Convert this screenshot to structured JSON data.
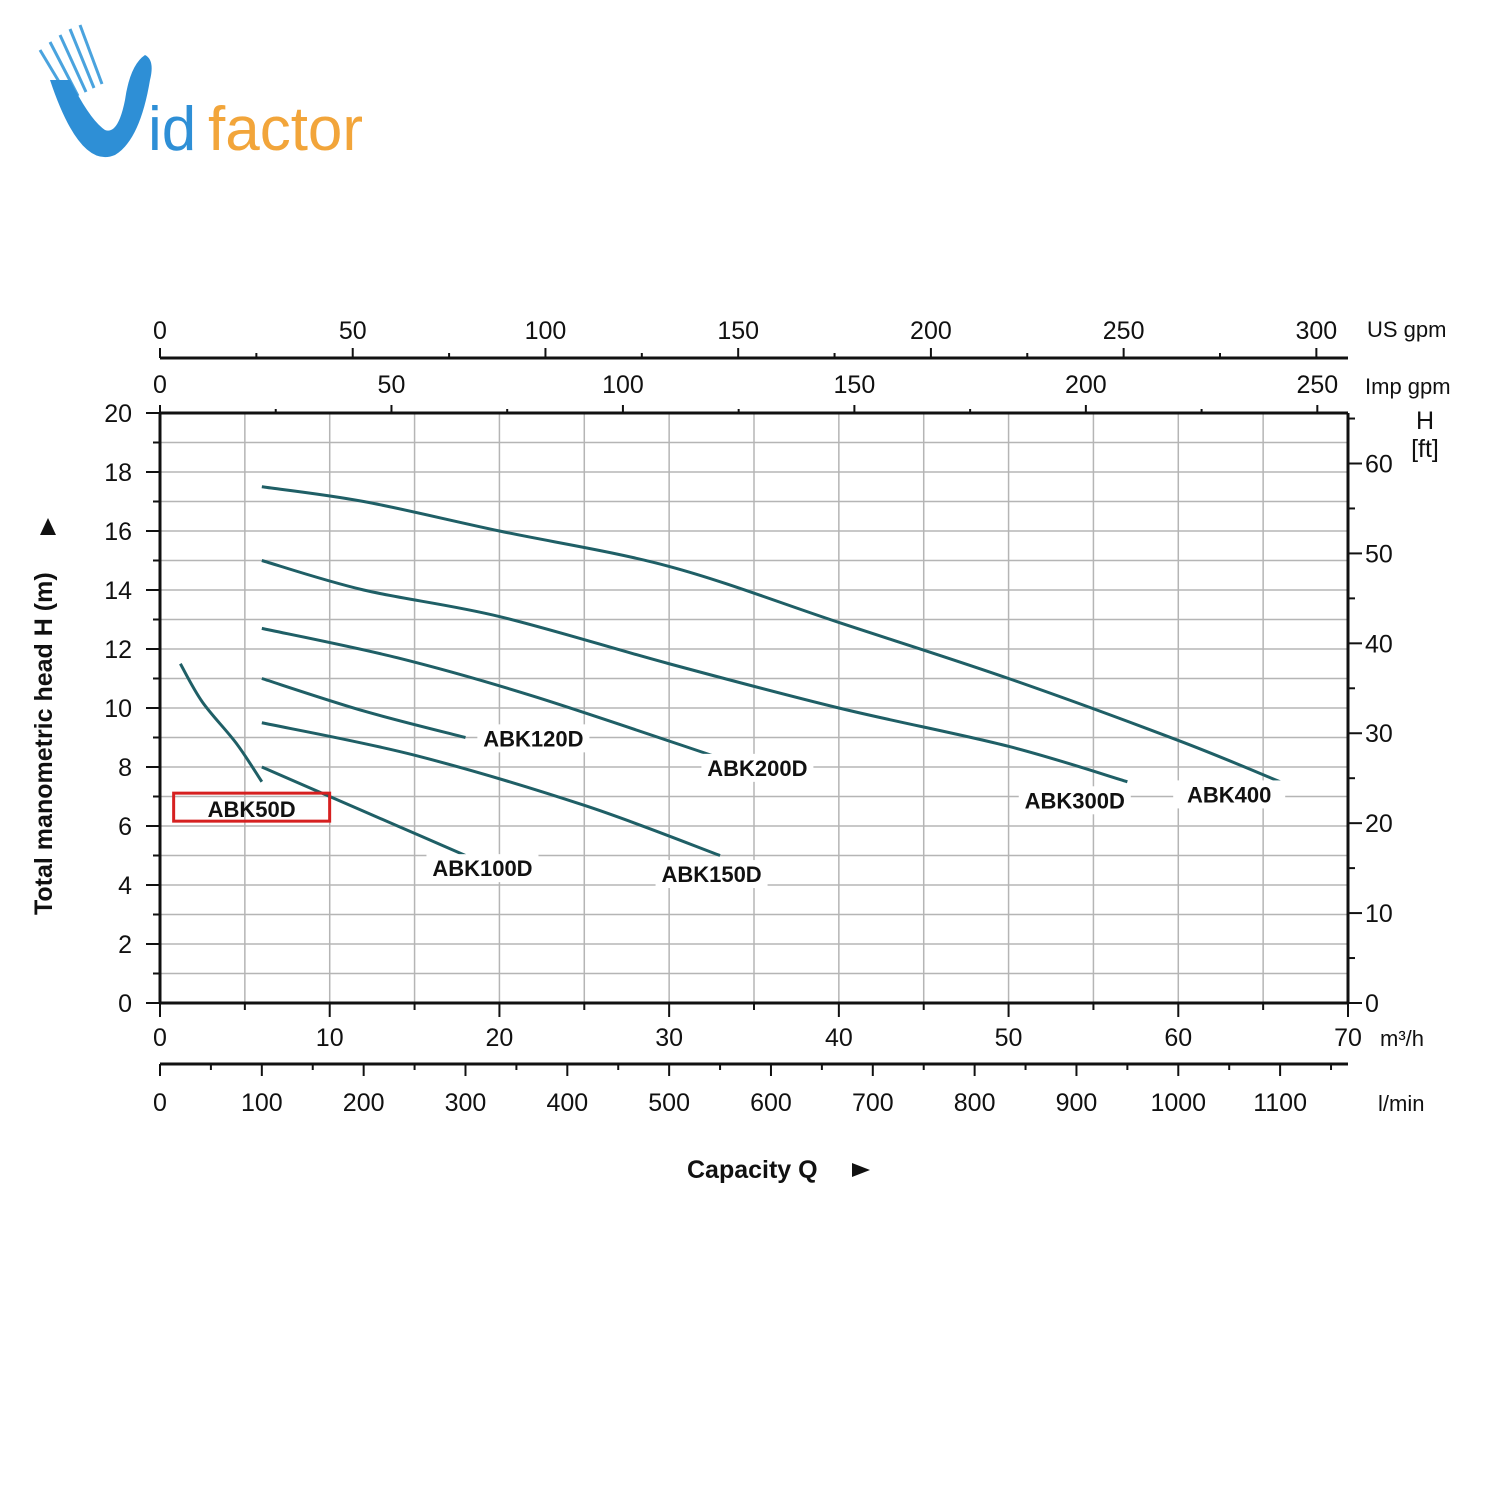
{
  "brand": {
    "name_first": "V",
    "name_rest_blue": "id",
    "name_rest_orange": "factor",
    "colors": {
      "blue": "#2e8fd6",
      "orange": "#f2a53a"
    }
  },
  "chart_data": {
    "type": "line",
    "title": "",
    "xlabel": "Capacity Q",
    "ylabel": "Total manometric head H (m)",
    "xunit": "m³/h",
    "xlim": [
      0,
      70
    ],
    "ylim": [
      0,
      20
    ],
    "x_ticks": [
      "0",
      "10",
      "20",
      "30",
      "40",
      "50",
      "60",
      "70"
    ],
    "y_ticks": [
      "0",
      "2",
      "4",
      "6",
      "8",
      "10",
      "12",
      "14",
      "16",
      "18",
      "20"
    ],
    "secondary_axes": {
      "lmin": {
        "unit": "l/min",
        "ticks": [
          "0",
          "100",
          "200",
          "300",
          "400",
          "500",
          "600",
          "700",
          "800",
          "900",
          "1000",
          "1100"
        ]
      },
      "us_gpm": {
        "unit": "US gpm",
        "ticks": [
          "0",
          "50",
          "100",
          "150",
          "200",
          "250",
          "300"
        ]
      },
      "imp_gpm": {
        "unit": "Imp gpm",
        "ticks": [
          "0",
          "50",
          "100",
          "150",
          "200",
          "250"
        ]
      },
      "h_ft": {
        "unit_top": "H",
        "unit_bottom": "[ft]",
        "ticks": [
          "0",
          "10",
          "20",
          "30",
          "40",
          "50",
          "60"
        ]
      }
    },
    "grid": true,
    "line_color": "#1f5f66",
    "highlight_color": "#d62020",
    "series": [
      {
        "name": "ABK50D",
        "highlighted": true,
        "points": [
          [
            1.2,
            11.5
          ],
          [
            2.5,
            10.2
          ],
          [
            4.5,
            8.8
          ],
          [
            6.0,
            7.5
          ]
        ]
      },
      {
        "name": "ABK100D",
        "points": [
          [
            6,
            8.0
          ],
          [
            10,
            7.0
          ],
          [
            14,
            6.0
          ],
          [
            18,
            5.0
          ]
        ]
      },
      {
        "name": "ABK120D",
        "points": [
          [
            6,
            11.0
          ],
          [
            12,
            9.9
          ],
          [
            18,
            9.0
          ]
        ]
      },
      {
        "name": "ABK150D",
        "points": [
          [
            6,
            9.5
          ],
          [
            15,
            8.4
          ],
          [
            25,
            6.7
          ],
          [
            33,
            5.0
          ]
        ]
      },
      {
        "name": "ABK200D",
        "points": [
          [
            6,
            12.7
          ],
          [
            14,
            11.7
          ],
          [
            22,
            10.4
          ],
          [
            33,
            8.3
          ]
        ]
      },
      {
        "name": "ABK300D",
        "points": [
          [
            6,
            15.0
          ],
          [
            12,
            14.0
          ],
          [
            20,
            13.1
          ],
          [
            30,
            11.5
          ],
          [
            40,
            10.0
          ],
          [
            50,
            8.7
          ],
          [
            57,
            7.5
          ]
        ]
      },
      {
        "name": "ABK400",
        "points": [
          [
            6,
            17.5
          ],
          [
            12,
            17.0
          ],
          [
            20,
            16.0
          ],
          [
            30,
            14.8
          ],
          [
            40,
            12.9
          ],
          [
            50,
            11.0
          ],
          [
            60,
            8.9
          ],
          [
            66,
            7.5
          ]
        ]
      }
    ]
  }
}
